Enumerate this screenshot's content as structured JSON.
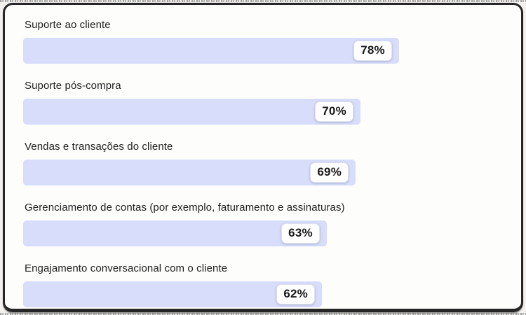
{
  "chart_data": {
    "type": "bar",
    "orientation": "horizontal",
    "categories": [
      "Suporte ao cliente",
      "Suporte pós-compra",
      "Vendas e transações do cliente",
      "Gerenciamento de contas (por exemplo, faturamento e assinaturas)",
      "Engajamento conversacional com o cliente"
    ],
    "values": [
      78,
      70,
      69,
      63,
      62
    ],
    "display_values": [
      "78%",
      "70%",
      "69%",
      "63%",
      "62%"
    ],
    "value_suffix": "%",
    "xlim": [
      0,
      100
    ],
    "grid": false,
    "legend": false,
    "colors": {
      "bar": "#d7ddfa",
      "value_badge_background": "#ffffff",
      "value_badge_border": "#dfe2f2",
      "label_text": "#1f1f1f",
      "value_text": "#18181a",
      "card_background": "#fdfdfc",
      "card_border": "#262626"
    }
  }
}
